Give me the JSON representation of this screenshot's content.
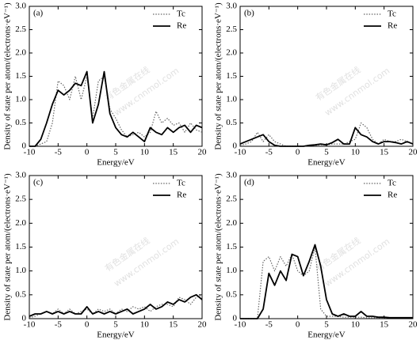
{
  "watermark": "有色金属在线",
  "watermark_url": "www.cnnmol.com",
  "chart_data": [
    {
      "type": "line",
      "label": "(a)",
      "xlabel": "Energy/eV",
      "ylabel": "Density of state per atom/(electrons·eV⁻¹)",
      "legend": "upper right",
      "x": [
        -10,
        -9,
        -8,
        -7,
        -6,
        -5,
        -4,
        -3,
        -2,
        -1,
        0,
        1,
        2,
        3,
        4,
        5,
        6,
        7,
        8,
        9,
        10,
        11,
        12,
        13,
        14,
        15,
        16,
        17,
        18,
        19,
        20
      ],
      "series": [
        {
          "name": "Tc",
          "color": "#666666",
          "linestyle": "dotted",
          "values": [
            0,
            0,
            0.05,
            0.1,
            0.5,
            1.4,
            1.3,
            1.0,
            1.5,
            1.0,
            1.5,
            0.6,
            1.4,
            1.5,
            0.8,
            0.6,
            0.35,
            0.2,
            0.25,
            0.3,
            0.2,
            0.3,
            0.75,
            0.5,
            0.6,
            0.45,
            0.5,
            0.3,
            0.5,
            0.35,
            0.3
          ]
        },
        {
          "name": "Re",
          "color": "#000000",
          "linestyle": "solid",
          "values": [
            0,
            0,
            0.15,
            0.5,
            0.9,
            1.2,
            1.1,
            1.2,
            1.35,
            1.3,
            1.6,
            0.5,
            0.9,
            1.6,
            0.7,
            0.4,
            0.25,
            0.2,
            0.3,
            0.2,
            0.1,
            0.4,
            0.3,
            0.25,
            0.4,
            0.3,
            0.4,
            0.45,
            0.3,
            0.45,
            0.4
          ]
        }
      ],
      "xlim": [
        -10,
        20
      ],
      "xticks": [
        -10,
        -5,
        0,
        5,
        10,
        15,
        20
      ],
      "ylim": [
        0,
        3
      ],
      "yticks": [
        0,
        0.5,
        {
          "value": 1,
          "label": "1.0"
        },
        1.5,
        {
          "value": 2,
          "label": "2.0"
        },
        2.5,
        {
          "value": 3,
          "label": "3.0"
        }
      ]
    },
    {
      "type": "line",
      "label": "(b)",
      "xlabel": "Energy/eV",
      "ylabel": "Density of state per atom/(electrons·eV⁻¹)",
      "legend": "upper right",
      "x": [
        -10,
        -9,
        -8,
        -7,
        -6,
        -5,
        -4,
        -3,
        -2,
        -1,
        0,
        1,
        2,
        3,
        4,
        5,
        6,
        7,
        8,
        9,
        10,
        11,
        12,
        13,
        14,
        15,
        16,
        17,
        18,
        19,
        20
      ],
      "series": [
        {
          "name": "Tc",
          "color": "#666666",
          "linestyle": "dotted",
          "values": [
            0.02,
            0.05,
            0.1,
            0.3,
            0.1,
            0.25,
            0.1,
            0.05,
            0,
            0,
            0,
            0,
            0.02,
            0.02,
            0.03,
            0.03,
            0.05,
            0.05,
            0.05,
            0.1,
            0.15,
            0.5,
            0.4,
            0.15,
            0.05,
            0.15,
            0.1,
            0.1,
            0.15,
            0.1,
            0.05
          ]
        },
        {
          "name": "Re",
          "color": "#000000",
          "linestyle": "solid",
          "values": [
            0.05,
            0.1,
            0.15,
            0.2,
            0.25,
            0.1,
            0.02,
            0,
            0,
            0,
            0,
            0,
            0.02,
            0.03,
            0.05,
            0.03,
            0.08,
            0.15,
            0.05,
            0.05,
            0.4,
            0.25,
            0.2,
            0.1,
            0.05,
            0.1,
            0.1,
            0.08,
            0.05,
            0.1,
            0.05
          ]
        }
      ],
      "xlim": [
        -10,
        20
      ],
      "xticks": [
        -10,
        -5,
        0,
        5,
        10,
        15,
        20
      ],
      "ylim": [
        0,
        3
      ],
      "yticks": [
        0,
        0.5,
        {
          "value": 1,
          "label": "1.0"
        },
        1.5,
        {
          "value": 2,
          "label": "2.0"
        },
        2.5,
        {
          "value": 3,
          "label": "3.0"
        }
      ]
    },
    {
      "type": "line",
      "label": "(c)",
      "xlabel": "Energy/eV",
      "ylabel": "Density of state per atom/(electrons·eV⁻¹)",
      "legend": "upper right",
      "x": [
        -10,
        -9,
        -8,
        -7,
        -6,
        -5,
        -4,
        -3,
        -2,
        -1,
        0,
        1,
        2,
        3,
        4,
        5,
        6,
        7,
        8,
        9,
        10,
        11,
        12,
        13,
        14,
        15,
        16,
        17,
        18,
        19,
        20
      ],
      "series": [
        {
          "name": "Tc",
          "color": "#666666",
          "linestyle": "dotted",
          "values": [
            0.02,
            0.05,
            0.1,
            0.15,
            0.1,
            0.2,
            0.1,
            0.2,
            0.1,
            0.15,
            0.2,
            0.1,
            0.2,
            0.15,
            0.2,
            0.1,
            0.2,
            0.15,
            0.25,
            0.2,
            0.25,
            0.15,
            0.25,
            0.3,
            0.3,
            0.25,
            0.45,
            0.4,
            0.3,
            0.45,
            0.5
          ]
        },
        {
          "name": "Re",
          "color": "#000000",
          "linestyle": "solid",
          "values": [
            0.05,
            0.1,
            0.1,
            0.15,
            0.1,
            0.15,
            0.1,
            0.15,
            0.1,
            0.1,
            0.25,
            0.1,
            0.15,
            0.1,
            0.15,
            0.1,
            0.15,
            0.2,
            0.1,
            0.15,
            0.2,
            0.3,
            0.2,
            0.25,
            0.35,
            0.3,
            0.4,
            0.35,
            0.45,
            0.5,
            0.4
          ]
        }
      ],
      "xlim": [
        -10,
        20
      ],
      "xticks": [
        -10,
        -5,
        0,
        5,
        10,
        15,
        20
      ],
      "ylim": [
        0,
        3
      ],
      "yticks": [
        0,
        0.5,
        {
          "value": 1,
          "label": "1.0"
        },
        1.5,
        {
          "value": 2,
          "label": "2.0"
        },
        2.5,
        {
          "value": 3,
          "label": "3.0"
        }
      ]
    },
    {
      "type": "line",
      "label": "(d)",
      "xlabel": "Energy/eV",
      "ylabel": "Density of state per atom/(electrons·eV⁻¹)",
      "legend": "upper right",
      "x": [
        -10,
        -9,
        -8,
        -7,
        -6,
        -5,
        -4,
        -3,
        -2,
        -1,
        0,
        1,
        2,
        3,
        4,
        5,
        6,
        7,
        8,
        9,
        10,
        11,
        12,
        13,
        14,
        15,
        16,
        17,
        18,
        19,
        20
      ],
      "series": [
        {
          "name": "Tc",
          "color": "#666666",
          "linestyle": "dotted",
          "values": [
            0,
            0,
            0,
            0,
            1.2,
            1.3,
            1.0,
            1.3,
            1.1,
            1.35,
            1.0,
            0.9,
            1.0,
            1.5,
            0.2,
            0.05,
            0.05,
            0.05,
            0.03,
            0.03,
            0.03,
            0.03,
            0.02,
            0.02,
            0.02,
            0.02,
            0.02,
            0.02,
            0.02,
            0.02,
            0.02
          ]
        },
        {
          "name": "Re",
          "color": "#000000",
          "linestyle": "solid",
          "values": [
            0,
            0,
            0,
            0,
            0.2,
            0.95,
            0.7,
            1.0,
            0.8,
            1.35,
            1.3,
            0.9,
            1.2,
            1.55,
            1.1,
            0.4,
            0.1,
            0.05,
            0.1,
            0.05,
            0.05,
            0.15,
            0.05,
            0.05,
            0.03,
            0.03,
            0.02,
            0.02,
            0.02,
            0.02,
            0.02
          ]
        }
      ],
      "xlim": [
        -10,
        20
      ],
      "xticks": [
        -10,
        -5,
        0,
        5,
        10,
        15,
        20
      ],
      "ylim": [
        0,
        3
      ],
      "yticks": [
        0,
        0.5,
        {
          "value": 1,
          "label": "1.0"
        },
        1.5,
        {
          "value": 2,
          "label": "2.0"
        },
        2.5,
        {
          "value": 3,
          "label": "3.0"
        }
      ]
    }
  ]
}
